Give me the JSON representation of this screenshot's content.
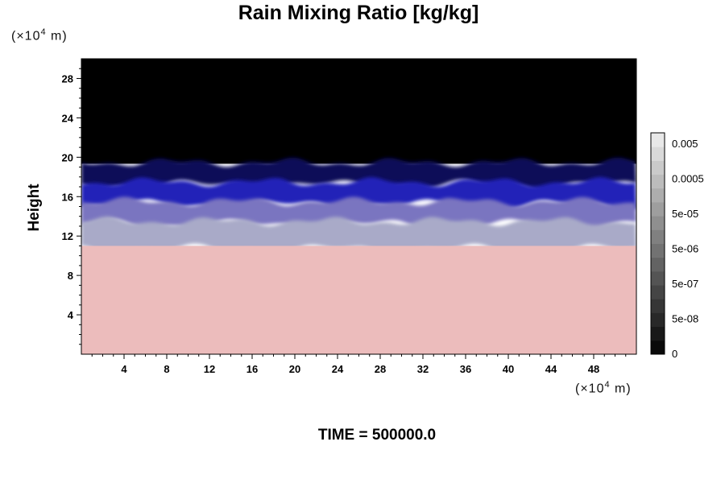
{
  "chart_data": {
    "type": "heatmap",
    "title": "Rain Mixing Ratio [kg/kg]",
    "ylabel": "Height",
    "xlabel": "",
    "x_unit_prefix": "(×10",
    "x_unit_exp": "4",
    "x_unit_suffix": " m)",
    "y_unit_prefix": "(×10",
    "y_unit_exp": "4",
    "y_unit_suffix": " m)",
    "xlim": [
      0,
      52
    ],
    "ylim": [
      0,
      30
    ],
    "x_ticks": [
      4,
      8,
      12,
      16,
      20,
      24,
      28,
      32,
      36,
      40,
      44,
      48
    ],
    "y_ticks": [
      4,
      8,
      12,
      16,
      20,
      24,
      28
    ],
    "colorbar_labels": [
      "0.005",
      "0.0005",
      "5e-05",
      "5e-06",
      "5e-07",
      "5e-08",
      "0"
    ],
    "layers": [
      {
        "name": "upper",
        "y_range": [
          19.5,
          30
        ],
        "color": "#000000"
      },
      {
        "name": "transition",
        "y_range": [
          17.5,
          19.5
        ],
        "color": "#0b0b58"
      },
      {
        "name": "blue",
        "y_range": [
          15.5,
          17.5
        ],
        "color": "#2424b8"
      },
      {
        "name": "violet",
        "y_range": [
          13.5,
          15.5
        ],
        "color": "#7a74c0"
      },
      {
        "name": "mixed",
        "y_range": [
          11,
          13.5
        ],
        "color": "#a9aac8"
      },
      {
        "name": "lower",
        "y_range": [
          0,
          11
        ],
        "color": "#ecbcbc"
      }
    ],
    "footer": "TIME = 500000.0"
  }
}
